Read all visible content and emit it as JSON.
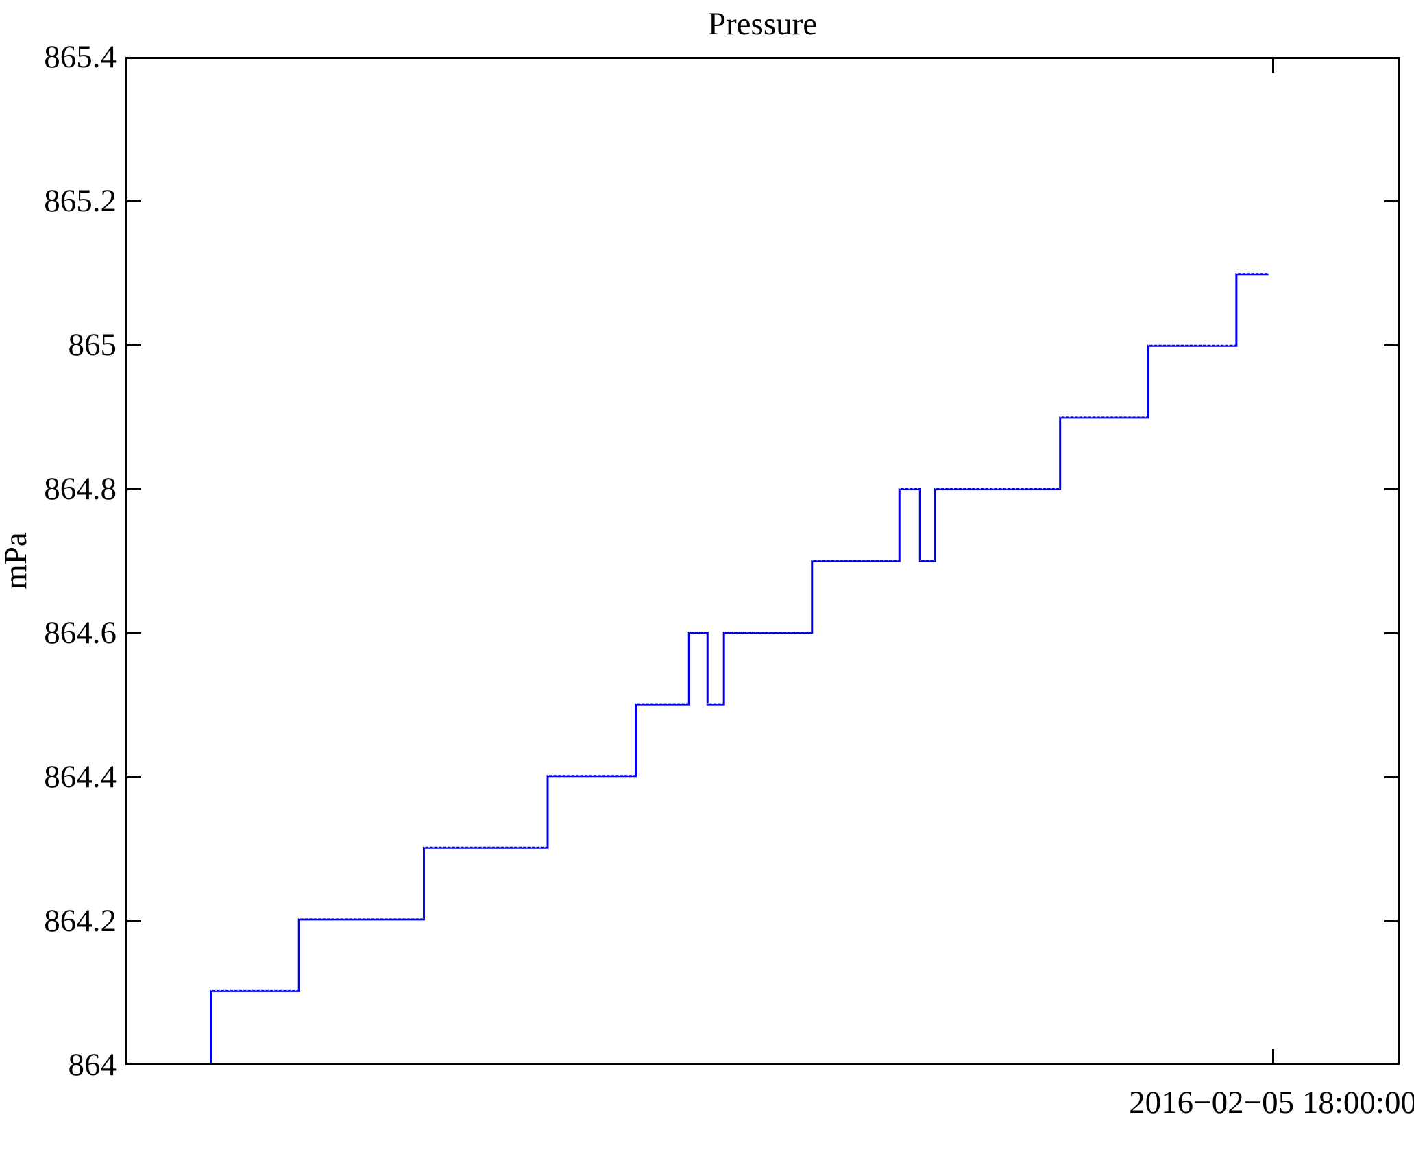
{
  "title": "Pressure",
  "chart_data": {
    "type": "line",
    "subtype": "step",
    "title": "Pressure",
    "xlabel": "",
    "ylabel": "mPa",
    "ylim": [
      864,
      865.4
    ],
    "y_tick_interval": 0.2,
    "y_ticks": [
      {
        "value": 865.4,
        "label": "865.4"
      },
      {
        "value": 865.2,
        "label": "865.2"
      },
      {
        "value": 865.0,
        "label": "865"
      },
      {
        "value": 864.8,
        "label": "864.8"
      },
      {
        "value": 864.6,
        "label": "864.6"
      },
      {
        "value": 864.4,
        "label": "864.4"
      },
      {
        "value": 864.2,
        "label": "864.2"
      },
      {
        "value": 864.0,
        "label": "864"
      }
    ],
    "x_tick": {
      "fraction": 0.9005,
      "label": "2016−02−05 18:00:00"
    },
    "grid": false,
    "legend": "none",
    "line_color": "#0000ee",
    "frame_color": "#000000",
    "steps_note": "step series; x values are fractions of plot width, y values in mPa",
    "steps": [
      [
        0.0656,
        864.0
      ],
      [
        0.0656,
        864.1
      ],
      [
        0.135,
        864.1
      ],
      [
        0.135,
        864.2
      ],
      [
        0.2334,
        864.2
      ],
      [
        0.2334,
        864.3
      ],
      [
        0.3308,
        864.3
      ],
      [
        0.3308,
        864.4
      ],
      [
        0.4002,
        864.4
      ],
      [
        0.4002,
        864.5
      ],
      [
        0.4421,
        864.5
      ],
      [
        0.4421,
        864.6
      ],
      [
        0.4567,
        864.6
      ],
      [
        0.4567,
        864.5
      ],
      [
        0.4696,
        864.5
      ],
      [
        0.4696,
        864.6
      ],
      [
        0.539,
        864.6
      ],
      [
        0.539,
        864.7
      ],
      [
        0.6078,
        864.7
      ],
      [
        0.6078,
        864.8
      ],
      [
        0.624,
        864.8
      ],
      [
        0.624,
        864.7
      ],
      [
        0.6358,
        864.7
      ],
      [
        0.6358,
        864.8
      ],
      [
        0.7343,
        864.8
      ],
      [
        0.7343,
        864.9
      ],
      [
        0.8037,
        864.9
      ],
      [
        0.8037,
        865.0
      ],
      [
        0.8731,
        865.0
      ],
      [
        0.8731,
        865.1
      ],
      [
        0.8984,
        865.1
      ]
    ]
  }
}
